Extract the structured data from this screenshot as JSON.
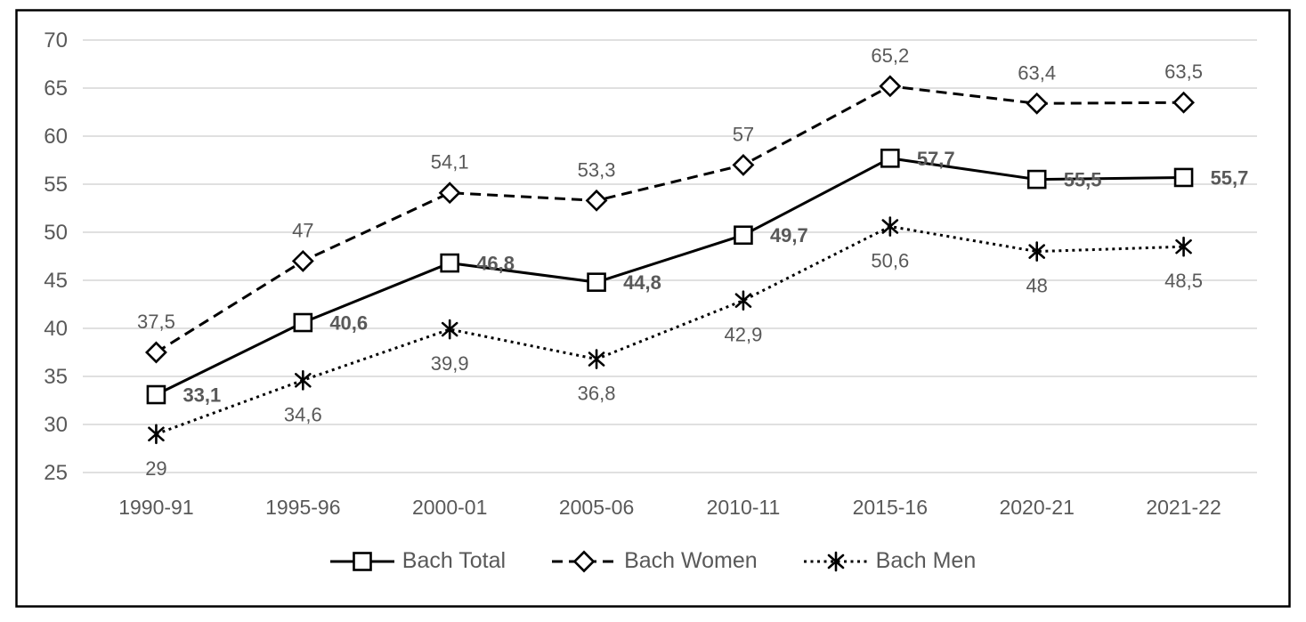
{
  "chart_data": {
    "type": "line",
    "title": "",
    "categories": [
      "1990-91",
      "1995-96",
      "2000-01",
      "2005-06",
      "2010-11",
      "2015-16",
      "2020-21",
      "2021-22"
    ],
    "series": [
      {
        "name": "Bach Total",
        "values": [
          33.1,
          40.6,
          46.8,
          44.8,
          49.7,
          57.7,
          55.5,
          55.7
        ],
        "labels": [
          "33,1",
          "40,6",
          "46,8",
          "44,8",
          "49,7",
          "57,7",
          "55,5",
          "55,7"
        ],
        "line_style": "solid",
        "marker": "square",
        "label_position": "right",
        "label_bold": true
      },
      {
        "name": "Bach Women",
        "values": [
          37.5,
          47,
          54.1,
          53.3,
          57,
          65.2,
          63.4,
          63.5
        ],
        "labels": [
          "37,5",
          "47",
          "54,1",
          "53,3",
          "57",
          "65,2",
          "63,4",
          "63,5"
        ],
        "line_style": "dashed",
        "marker": "diamond",
        "label_position": "above",
        "label_bold": false
      },
      {
        "name": "Bach Men",
        "values": [
          29,
          34.6,
          39.9,
          36.8,
          42.9,
          50.6,
          48,
          48.5
        ],
        "labels": [
          "29",
          "34,6",
          "39,9",
          "36,8",
          "42,9",
          "50,6",
          "48",
          "48,5"
        ],
        "line_style": "dotted",
        "marker": "asterisk",
        "label_position": "below",
        "label_bold": false
      }
    ],
    "y_axis": {
      "min": 25,
      "max": 70,
      "step": 5,
      "tick_labels": [
        "70",
        "65",
        "60",
        "55",
        "50",
        "45",
        "40",
        "35",
        "30",
        "25"
      ]
    },
    "x_axis": {
      "tick_labels": [
        "1990-91",
        "1995-96",
        "2000-01",
        "2005-06",
        "2010-11",
        "2015-16",
        "2020-21",
        "2021-22"
      ]
    },
    "legend": {
      "position": "bottom",
      "entries": [
        "Bach Total",
        "Bach Women",
        "Bach Men"
      ]
    },
    "grid": true,
    "decimal_separator": ",",
    "colors": {
      "series": "#000000",
      "axis_text": "#595959",
      "data_label": "#595959",
      "gridline": "#D6D6D6",
      "background": "#FFFFFF",
      "border": "#000000"
    }
  }
}
